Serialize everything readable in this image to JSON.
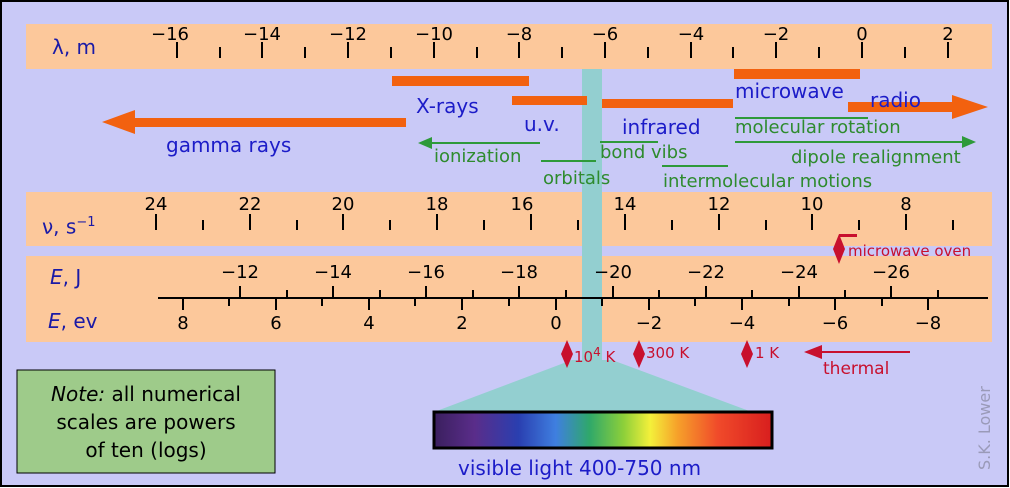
{
  "colors": {
    "background": "#c9c9f7",
    "band": "#fcc89b",
    "orange": "#f2610f",
    "green_arrow": "#2e9a3a",
    "red": "#c8102e",
    "teal": "#93cfd0",
    "note_box": "#9ecb8a"
  },
  "wavelength_axis": {
    "label": "λ, m",
    "ticks": [
      "−16",
      "−14",
      "−12",
      "−10",
      "−8",
      "−6",
      "−4",
      "−2",
      "0",
      "2"
    ]
  },
  "frequency_axis": {
    "label_base": "ν, s",
    "label_exp": "−1",
    "ticks": [
      "24",
      "22",
      "20",
      "18",
      "16",
      "14",
      "12",
      "10",
      "8"
    ]
  },
  "energy_j_axis": {
    "label": "E, J",
    "ticks": [
      "−12",
      "−14",
      "−16",
      "−18",
      "−20",
      "−22",
      "−24",
      "−26"
    ]
  },
  "energy_ev_axis": {
    "label": "E, ev",
    "ticks": [
      "8",
      "6",
      "4",
      "2",
      "0",
      "−2",
      "−4",
      "−6",
      "−8"
    ]
  },
  "regions": {
    "gamma": "gamma rays",
    "xrays": "X-rays",
    "uv": "u.v.",
    "infrared": "infrared",
    "microwave": "microwave",
    "radio": "radio"
  },
  "effects": {
    "ionization": "ionization",
    "orbitals": "orbitals",
    "bond_vibs": "bond vibs",
    "intermolecular": "intermolecular motions",
    "molecular_rotation": "molecular rotation",
    "dipole": "dipole realignment"
  },
  "markers": {
    "microwave_oven": "microwave oven",
    "t10k_base": "10",
    "t10k_exp": "4",
    "t10k_unit": "K",
    "t300k": "300 K",
    "t1k": "1 K",
    "thermal": "thermal"
  },
  "note": {
    "italic": "Note:",
    "text1": " all numerical",
    "text2": "scales are powers",
    "text3": "of ten (logs)"
  },
  "visible_label": "visible light 400-750 nm",
  "credit": "S.K. Lower"
}
